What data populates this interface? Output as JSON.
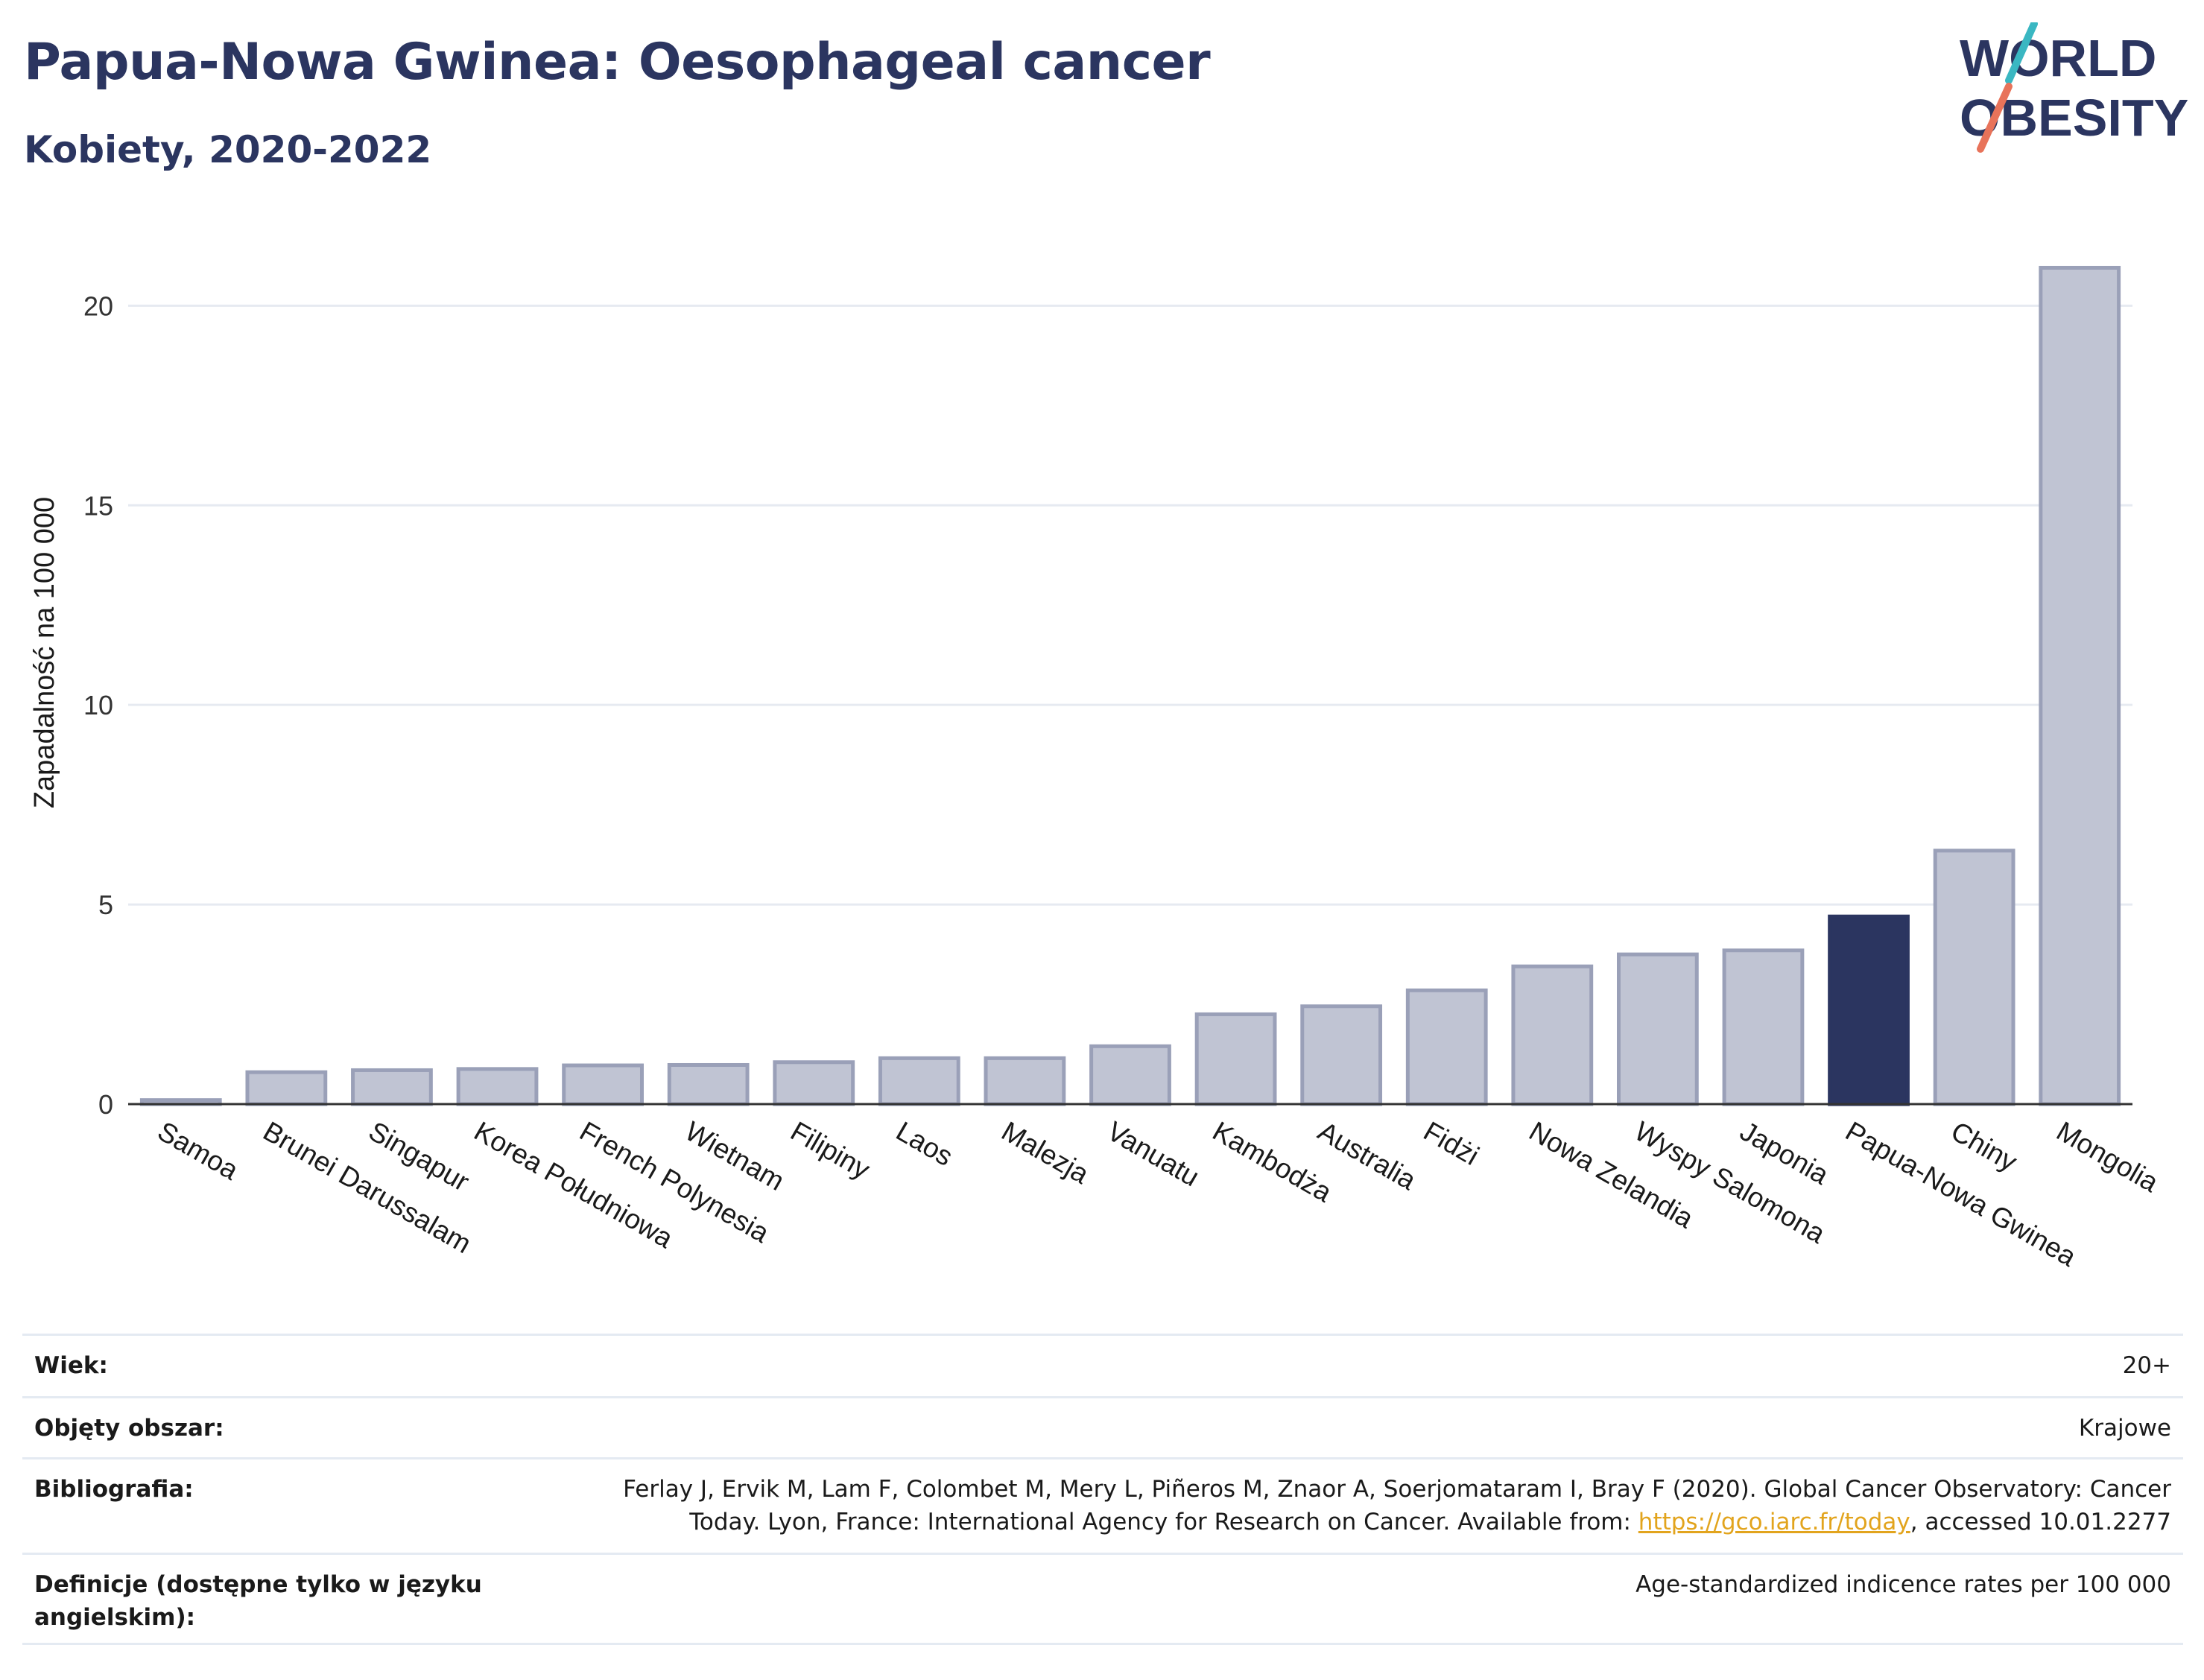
{
  "header": {
    "title": "Papua-Nowa Gwinea: Oesophageal cancer",
    "subtitle": "Kobiety, 2020-2022"
  },
  "logo": {
    "line1": "WORLD",
    "line2": "OBESITY",
    "colors": {
      "text": "#2b3560",
      "slash_top": "#3ab7c2",
      "slash_bottom": "#e8735a"
    }
  },
  "chart_data": {
    "type": "bar",
    "ylabel": "Zapadalność na 100 000",
    "xlabel": "",
    "ylim": [
      0,
      21.5
    ],
    "yticks": [
      0,
      5,
      10,
      15,
      20
    ],
    "grid": true,
    "highlight": "Papua-Nowa Gwinea",
    "colors": {
      "bar": "#c0c4d3",
      "bar_edge": "#9aa0b8",
      "highlight": "#2b3560",
      "grid": "#e6eaf1",
      "axis": "#333333"
    },
    "categories": [
      "Samoa",
      "Brunei Darussalam",
      "Singapur",
      "Korea Południowa",
      "French Polynesia",
      "Wietnam",
      "Filipiny",
      "Laos",
      "Malezja",
      "Vanuatu",
      "Kambodża",
      "Australia",
      "Fidżi",
      "Nowa Zelandia",
      "Wyspy Salomona",
      "Japonia",
      "Papua-Nowa Gwinea",
      "Chiny",
      "Mongolia"
    ],
    "values": [
      0.1,
      0.8,
      0.85,
      0.88,
      0.97,
      0.98,
      1.05,
      1.15,
      1.15,
      1.45,
      2.25,
      2.45,
      2.85,
      3.45,
      3.75,
      3.85,
      4.7,
      6.35,
      20.95
    ]
  },
  "meta": [
    {
      "label": "Wiek:",
      "value": "20+"
    },
    {
      "label": "Objęty obszar:",
      "value": "Krajowe"
    },
    {
      "label": "Bibliografia:",
      "value_line1": "Ferlay J, Ervik M, Lam F, Colombet M, Mery L, Piñeros M, Znaor A, Soerjomataram I, Bray F (2020). Global Cancer Observatory: Cancer",
      "value_line2_pre": "Today. Lyon, France: International Agency for Research on Cancer. Available from: ",
      "value_link": "https://gco.iarc.fr/today",
      "value_line2_post": ", accessed 10.01.2277"
    },
    {
      "label_line1": "Definicje (dostępne tylko w języku",
      "label_line2": "angielskim):",
      "value": "Age-standardized indicence rates per 100 000"
    }
  ]
}
